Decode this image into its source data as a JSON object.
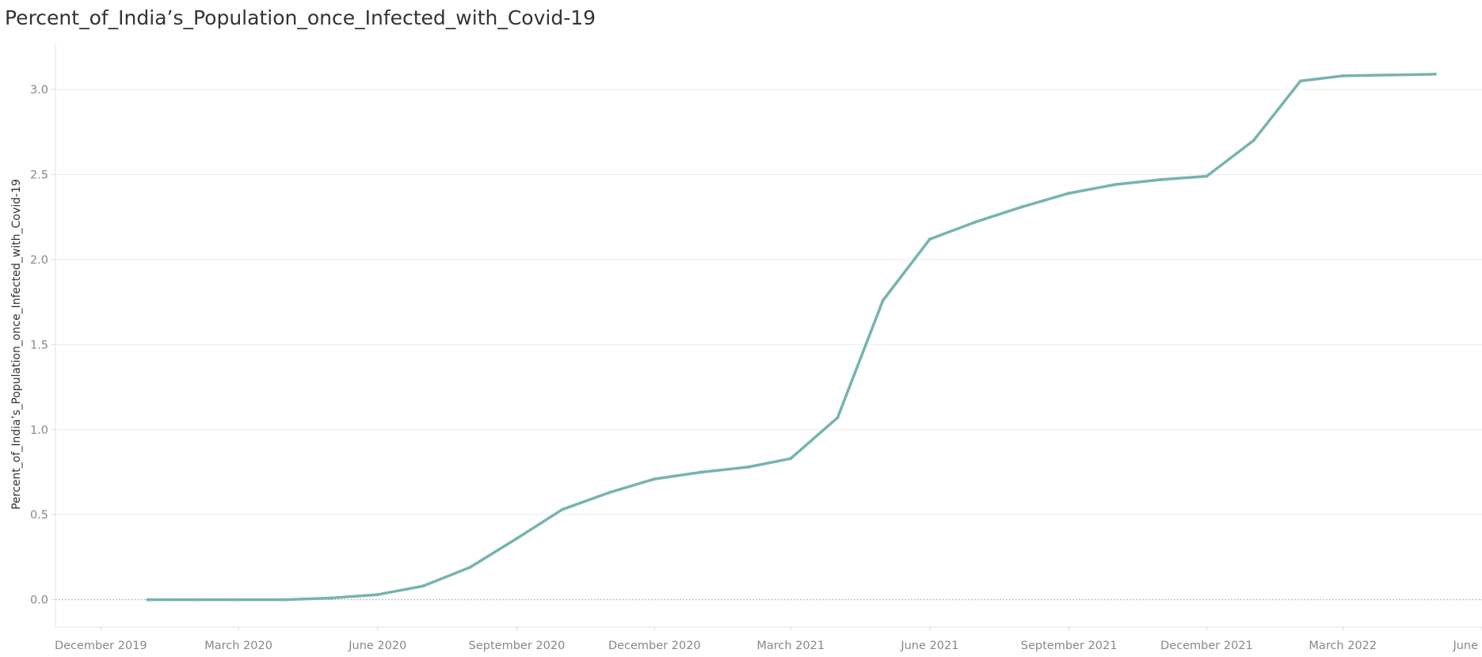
{
  "chart_data": {
    "type": "line",
    "title": "Percent_of_India’s_Population_once_Infected_with_Covid-19",
    "xlabel": "",
    "ylabel": "Percent_of_India’s_Population_once_Infected_with_Covid-19",
    "x_ticks": [
      {
        "date": "2019-12-01",
        "label": "December 2019"
      },
      {
        "date": "2020-03-01",
        "label": "March 2020"
      },
      {
        "date": "2020-06-01",
        "label": "June 2020"
      },
      {
        "date": "2020-09-01",
        "label": "September 2020"
      },
      {
        "date": "2020-12-01",
        "label": "December 2020"
      },
      {
        "date": "2021-03-01",
        "label": "March 2021"
      },
      {
        "date": "2021-06-01",
        "label": "June 2021"
      },
      {
        "date": "2021-09-01",
        "label": "September 2021"
      },
      {
        "date": "2021-12-01",
        "label": "December 2021"
      },
      {
        "date": "2022-03-01",
        "label": "March 2022"
      },
      {
        "date": "2022-06-01",
        "label": "June 2022"
      }
    ],
    "y_ticks": [
      0.0,
      0.5,
      1.0,
      1.5,
      2.0,
      2.5,
      3.0
    ],
    "y_tick_labels": [
      "0.0",
      "0.5",
      "1.0",
      "1.5",
      "2.0",
      "2.5",
      "3.0"
    ],
    "xlim": [
      "2019-11-01",
      "2022-06-01"
    ],
    "ylim": [
      -0.16,
      3.27
    ],
    "grid": "horizontal",
    "zero_line": "dotted",
    "series": [
      {
        "color": "#76b4b0",
        "points": [
          {
            "x": "2020-01-01",
            "y": 0.0
          },
          {
            "x": "2020-02-01",
            "y": 0.0
          },
          {
            "x": "2020-03-01",
            "y": 0.0
          },
          {
            "x": "2020-04-01",
            "y": 0.0
          },
          {
            "x": "2020-05-01",
            "y": 0.01
          },
          {
            "x": "2020-06-01",
            "y": 0.03
          },
          {
            "x": "2020-07-01",
            "y": 0.08
          },
          {
            "x": "2020-08-01",
            "y": 0.19
          },
          {
            "x": "2020-09-01",
            "y": 0.36
          },
          {
            "x": "2020-10-01",
            "y": 0.53
          },
          {
            "x": "2020-11-01",
            "y": 0.63
          },
          {
            "x": "2020-12-01",
            "y": 0.71
          },
          {
            "x": "2021-01-01",
            "y": 0.75
          },
          {
            "x": "2021-02-01",
            "y": 0.78
          },
          {
            "x": "2021-03-01",
            "y": 0.83
          },
          {
            "x": "2021-04-01",
            "y": 1.07
          },
          {
            "x": "2021-05-01",
            "y": 1.76
          },
          {
            "x": "2021-06-01",
            "y": 2.12
          },
          {
            "x": "2021-07-01",
            "y": 2.22
          },
          {
            "x": "2021-08-01",
            "y": 2.31
          },
          {
            "x": "2021-09-01",
            "y": 2.39
          },
          {
            "x": "2021-10-01",
            "y": 2.44
          },
          {
            "x": "2021-11-01",
            "y": 2.47
          },
          {
            "x": "2021-12-01",
            "y": 2.49
          },
          {
            "x": "2022-01-01",
            "y": 2.7
          },
          {
            "x": "2022-02-01",
            "y": 3.05
          },
          {
            "x": "2022-03-01",
            "y": 3.08
          },
          {
            "x": "2022-04-01",
            "y": 3.085
          },
          {
            "x": "2022-05-01",
            "y": 3.09
          }
        ]
      }
    ]
  }
}
